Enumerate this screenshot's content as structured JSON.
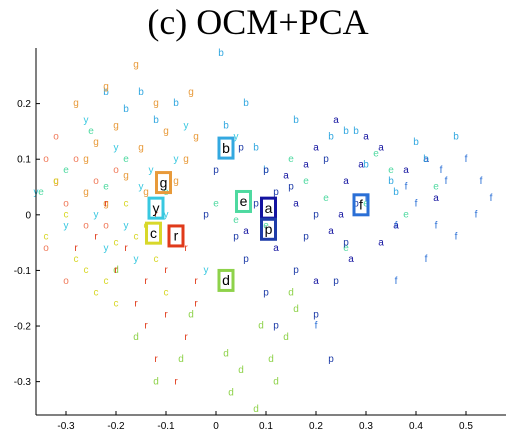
{
  "chart_data": {
    "type": "scatter",
    "title": "(c) OCM+PCA",
    "xlabel": "",
    "ylabel": "",
    "xlim": [
      -0.36,
      0.58
    ],
    "ylim": [
      -0.36,
      0.3
    ],
    "xticks": [
      -0.3,
      -0.2,
      -0.1,
      0,
      0.1,
      0.2,
      0.3,
      0.4,
      0.5
    ],
    "xtick_labels": [
      "-0.3",
      "-0.2",
      "-0.1",
      "0",
      "0.1",
      "0.2",
      "0.3",
      "0.4",
      "0.5"
    ],
    "yticks": [
      0.2,
      0.1,
      0,
      -0.1,
      -0.2,
      -0.3
    ],
    "ytick_labels": [
      "0.2",
      "0.1",
      "0",
      "-0.1",
      "-0.2",
      "-0.3"
    ],
    "grid": false,
    "series": [
      {
        "name": "a",
        "color": "#1414a0",
        "points": [
          [
            0.24,
            0.17
          ],
          [
            0.3,
            0.14
          ],
          [
            0.2,
            0.12
          ],
          [
            0.26,
            0.06
          ],
          [
            0.16,
            0.02
          ],
          [
            0.23,
            -0.03
          ],
          [
            0.33,
            -0.05
          ],
          [
            0.12,
            -0.06
          ],
          [
            0.2,
            -0.12
          ],
          [
            0.38,
            0.08
          ],
          [
            0.44,
            0.03
          ],
          [
            0.29,
            0.09
          ],
          [
            0.14,
            0.07
          ],
          [
            0.36,
            -0.02
          ],
          [
            0.06,
            -0.03
          ],
          [
            0.27,
            -0.08
          ],
          [
            0.18,
            0.09
          ],
          [
            0.25,
            0.0
          ],
          [
            0.42,
            0.1
          ],
          [
            0.33,
            0.12
          ]
        ]
      },
      {
        "name": "b",
        "color": "#33a8e0",
        "points": [
          [
            0.01,
            0.29
          ],
          [
            -0.15,
            0.22
          ],
          [
            -0.08,
            0.2
          ],
          [
            -0.22,
            0.22
          ],
          [
            0.02,
            0.16
          ],
          [
            0.08,
            0.12
          ],
          [
            0.23,
            0.14
          ],
          [
            0.3,
            0.09
          ],
          [
            0.42,
            0.1
          ],
          [
            0.48,
            0.14
          ],
          [
            -0.12,
            0.17
          ],
          [
            0.1,
            0.08
          ],
          [
            0.28,
            0.15
          ],
          [
            0.35,
            0.06
          ],
          [
            -0.18,
            0.19
          ],
          [
            0.06,
            0.2
          ],
          [
            0.16,
            0.17
          ],
          [
            0.4,
            0.13
          ],
          [
            0.26,
            0.15
          ],
          [
            0.36,
            0.04
          ]
        ]
      },
      {
        "name": "d",
        "color": "#8ed24a",
        "points": [
          [
            -0.16,
            -0.22
          ],
          [
            -0.12,
            -0.3
          ],
          [
            0.02,
            -0.25
          ],
          [
            0.05,
            -0.28
          ],
          [
            0.16,
            -0.17
          ],
          [
            0.08,
            -0.35
          ],
          [
            0.15,
            -0.14
          ],
          [
            -0.05,
            -0.18
          ],
          [
            0.14,
            -0.22
          ],
          [
            0.03,
            -0.32
          ],
          [
            -0.2,
            -0.1
          ],
          [
            0.09,
            -0.2
          ],
          [
            0.11,
            -0.26
          ],
          [
            -0.07,
            -0.26
          ],
          [
            0.12,
            -0.3
          ]
        ]
      },
      {
        "name": "e",
        "color": "#4ed9a0",
        "points": [
          [
            0.0,
            0.02
          ],
          [
            0.1,
            -0.02
          ],
          [
            0.18,
            0.06
          ],
          [
            0.3,
            0.02
          ],
          [
            0.35,
            0.08
          ],
          [
            -0.18,
            0.1
          ],
          [
            -0.25,
            0.15
          ],
          [
            -0.3,
            0.08
          ],
          [
            0.15,
            0.1
          ],
          [
            -0.1,
            0.04
          ],
          [
            0.26,
            -0.06
          ],
          [
            0.38,
            0.0
          ],
          [
            0.04,
            -0.01
          ],
          [
            -0.22,
            0.05
          ],
          [
            0.22,
            0.03
          ],
          [
            0.44,
            0.05
          ],
          [
            0.32,
            0.11
          ],
          [
            -0.35,
            0.04
          ]
        ]
      },
      {
        "name": "f",
        "color": "#2a6fd6",
        "points": [
          [
            0.5,
            0.1
          ],
          [
            0.55,
            0.03
          ],
          [
            0.45,
            0.08
          ],
          [
            0.52,
            0.0
          ],
          [
            0.36,
            -0.02
          ],
          [
            0.4,
            0.02
          ],
          [
            0.48,
            -0.04
          ],
          [
            0.42,
            -0.08
          ],
          [
            0.36,
            -0.12
          ],
          [
            0.46,
            0.06
          ],
          [
            0.3,
            0.03
          ],
          [
            0.38,
            0.05
          ],
          [
            0.2,
            -0.2
          ],
          [
            0.53,
            0.06
          ],
          [
            0.44,
            -0.02
          ]
        ]
      },
      {
        "name": "g",
        "color": "#e89a3a",
        "points": [
          [
            -0.16,
            0.27
          ],
          [
            -0.22,
            0.23
          ],
          [
            -0.24,
            0.13
          ],
          [
            -0.1,
            0.15
          ],
          [
            -0.14,
            0.04
          ],
          [
            -0.26,
            0.1
          ],
          [
            -0.32,
            0.06
          ],
          [
            -0.06,
            0.1
          ],
          [
            -0.18,
            0.07
          ],
          [
            -0.28,
            0.2
          ],
          [
            -0.12,
            0.2
          ],
          [
            -0.05,
            0.22
          ],
          [
            -0.2,
            0.16
          ],
          [
            -0.08,
            0.06
          ],
          [
            -0.15,
            0.12
          ],
          [
            -0.22,
            0.02
          ],
          [
            -0.26,
            0.04
          ],
          [
            -0.04,
            0.14
          ]
        ]
      },
      {
        "name": "p",
        "color": "#1e3ca8",
        "points": [
          [
            0.05,
            0.12
          ],
          [
            0.0,
            0.08
          ],
          [
            0.12,
            0.04
          ],
          [
            0.2,
            0.0
          ],
          [
            0.26,
            -0.05
          ],
          [
            0.16,
            -0.1
          ],
          [
            0.2,
            -0.18
          ],
          [
            0.23,
            -0.26
          ],
          [
            0.12,
            -0.2
          ],
          [
            0.1,
            -0.14
          ],
          [
            0.04,
            -0.04
          ],
          [
            0.08,
            0.02
          ],
          [
            0.15,
            0.05
          ],
          [
            0.22,
            0.1
          ],
          [
            0.28,
            0.02
          ],
          [
            -0.02,
            0.0
          ],
          [
            0.18,
            -0.04
          ],
          [
            0.1,
            0.08
          ],
          [
            0.24,
            -0.12
          ],
          [
            0.06,
            -0.08
          ]
        ]
      },
      {
        "name": "r",
        "color": "#e03a1a",
        "points": [
          [
            -0.24,
            -0.04
          ],
          [
            -0.2,
            -0.1
          ],
          [
            -0.14,
            -0.12
          ],
          [
            -0.1,
            -0.1
          ],
          [
            -0.06,
            -0.22
          ],
          [
            -0.08,
            -0.3
          ],
          [
            -0.12,
            -0.26
          ],
          [
            -0.04,
            -0.16
          ],
          [
            -0.16,
            -0.16
          ],
          [
            -0.18,
            -0.06
          ],
          [
            -0.22,
            0.02
          ],
          [
            -0.06,
            -0.06
          ],
          [
            -0.12,
            0.0
          ],
          [
            -0.04,
            -0.12
          ],
          [
            -0.1,
            -0.18
          ],
          [
            -0.14,
            -0.2
          ],
          [
            -0.28,
            -0.06
          ]
        ]
      },
      {
        "name": "y",
        "color": "#38c8e0",
        "points": [
          [
            -0.26,
            0.17
          ],
          [
            -0.2,
            0.12
          ],
          [
            -0.15,
            0.05
          ],
          [
            -0.1,
            0.0
          ],
          [
            -0.3,
            -0.02
          ],
          [
            -0.36,
            0.04
          ],
          [
            -0.22,
            -0.06
          ],
          [
            -0.18,
            -0.02
          ],
          [
            -0.13,
            0.08
          ],
          [
            -0.06,
            0.16
          ],
          [
            -0.02,
            -0.1
          ],
          [
            -0.16,
            -0.08
          ],
          [
            -0.24,
            0.0
          ],
          [
            -0.08,
            0.1
          ],
          [
            0.04,
            0.14
          ]
        ]
      },
      {
        "name": "c",
        "color": "#d8d82a",
        "points": [
          [
            -0.3,
            0.0
          ],
          [
            -0.34,
            -0.04
          ],
          [
            -0.26,
            -0.1
          ],
          [
            -0.2,
            -0.05
          ],
          [
            -0.14,
            -0.02
          ],
          [
            -0.18,
            0.02
          ],
          [
            -0.12,
            -0.08
          ],
          [
            -0.24,
            -0.14
          ],
          [
            -0.28,
            -0.08
          ],
          [
            -0.22,
            -0.12
          ],
          [
            -0.16,
            -0.04
          ],
          [
            -0.1,
            -0.14
          ],
          [
            -0.32,
            0.06
          ],
          [
            -0.2,
            -0.16
          ]
        ]
      },
      {
        "name": "o",
        "color": "#f07a5a",
        "points": [
          [
            -0.32,
            0.14
          ],
          [
            -0.28,
            0.1
          ],
          [
            -0.34,
            -0.06
          ],
          [
            -0.3,
            -0.12
          ],
          [
            -0.24,
            0.06
          ],
          [
            -0.2,
            0.08
          ],
          [
            -0.26,
            -0.02
          ],
          [
            -0.34,
            0.1
          ],
          [
            -0.3,
            0.02
          ],
          [
            -0.22,
            -0.02
          ]
        ]
      }
    ],
    "prototypes": [
      {
        "label": "b",
        "x": 0.02,
        "y": 0.12,
        "color": "#33a8e0"
      },
      {
        "label": "g",
        "x": -0.105,
        "y": 0.058,
        "color": "#e89a3a"
      },
      {
        "label": "y",
        "x": -0.12,
        "y": 0.012,
        "color": "#38c8e0"
      },
      {
        "label": "e",
        "x": 0.055,
        "y": 0.024,
        "color": "#4ed9a0"
      },
      {
        "label": "a",
        "x": 0.105,
        "y": 0.012,
        "color": "#1414a0"
      },
      {
        "label": "p",
        "x": 0.105,
        "y": -0.026,
        "color": "#1e3ca8"
      },
      {
        "label": "f",
        "x": 0.29,
        "y": 0.018,
        "color": "#2a6fd6"
      },
      {
        "label": "c",
        "x": -0.125,
        "y": -0.033,
        "color": "#d8d82a"
      },
      {
        "label": "r",
        "x": -0.08,
        "y": -0.038,
        "color": "#e03a1a"
      },
      {
        "label": "d",
        "x": 0.02,
        "y": -0.118,
        "color": "#8ed24a"
      }
    ]
  }
}
